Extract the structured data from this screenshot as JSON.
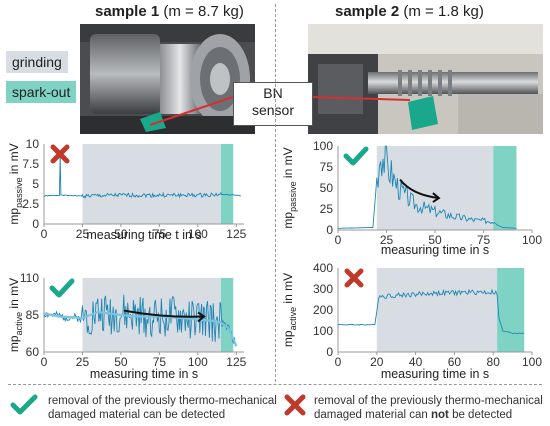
{
  "colors": {
    "grinding_bg": "#d7dde2",
    "sparkout_bg": "#7fd3c4",
    "signal": "#1f86b4",
    "signal_dark": "#0c5f8a",
    "check": "#1aa88c",
    "cross": "#c0392b"
  },
  "header": {
    "sample1_title": "sample 1",
    "sample1_mass": "(m = 8.7 kg)",
    "sample2_title": "sample 2",
    "sample2_mass": "(m = 1.8 kg)"
  },
  "legend": {
    "grinding": "grinding",
    "sparkout": "spark-out"
  },
  "callout": {
    "line1": "BN",
    "line2": "sensor"
  },
  "icons": {
    "check": "check-icon",
    "cross": "cross-icon"
  },
  "chart_data": [
    {
      "id": "s1_passive",
      "type": "line",
      "ylabel": "mp",
      "ylabel_sub": "passive",
      "ylabel_unit": " in mV",
      "xlabel": "measuring time t in s",
      "xlim": [
        0,
        130
      ],
      "ylim": [
        0,
        10
      ],
      "xticks": [
        "0",
        "25",
        "50",
        "75",
        "100",
        "125"
      ],
      "yticks": [
        "0",
        "2.5",
        "5",
        "7.5",
        "10"
      ],
      "grinding_range": [
        25,
        115
      ],
      "sparkout_range": [
        115,
        123
      ],
      "status": "cross",
      "series": [
        {
          "x": [
            0,
            10,
            10.5,
            11,
            25,
            50,
            75,
            100,
            115,
            125,
            128
          ],
          "values": [
            3.5,
            3.6,
            8.7,
            3.6,
            3.5,
            3.6,
            3.6,
            3.6,
            3.7,
            3.6,
            3.5
          ]
        }
      ]
    },
    {
      "id": "s1_active",
      "type": "line",
      "ylabel": "mp",
      "ylabel_sub": "active",
      "ylabel_unit": " in mV",
      "xlabel": "measuring time in s",
      "xlim": [
        0,
        130
      ],
      "ylim": [
        60,
        110
      ],
      "xticks": [
        "0",
        "25",
        "50",
        "75",
        "100",
        "125"
      ],
      "yticks": [
        "60",
        "85",
        "110"
      ],
      "grinding_range": [
        25,
        115
      ],
      "sparkout_range": [
        115,
        123
      ],
      "status": "check",
      "series": [
        {
          "x": [
            0,
            10,
            25,
            35,
            50,
            60,
            75,
            90,
            100,
            110,
            115,
            120,
            125
          ],
          "values": [
            86,
            84,
            83,
            87,
            85,
            84,
            84,
            83,
            82,
            81,
            80,
            76,
            64
          ]
        }
      ]
    },
    {
      "id": "s2_passive",
      "type": "line",
      "ylabel": "mp",
      "ylabel_sub": "passive",
      "ylabel_unit": " in mV",
      "xlabel": "measuring time in s",
      "xlim": [
        0,
        100
      ],
      "ylim": [
        0,
        100
      ],
      "xticks": [
        "0",
        "25",
        "50",
        "75",
        "100"
      ],
      "yticks": [
        "0",
        "25",
        "50",
        "75",
        "100"
      ],
      "grinding_range": [
        20,
        80
      ],
      "sparkout_range": [
        80,
        92
      ],
      "status": "check",
      "series": [
        {
          "x": [
            0,
            18,
            20,
            22,
            25,
            30,
            35,
            40,
            50,
            60,
            70,
            80,
            82,
            85,
            92
          ],
          "values": [
            2,
            3,
            60,
            92,
            80,
            55,
            40,
            30,
            22,
            16,
            12,
            10,
            6,
            3,
            2
          ]
        }
      ]
    },
    {
      "id": "s2_active",
      "type": "line",
      "ylabel": "mp",
      "ylabel_sub": "active",
      "ylabel_unit": " in mV",
      "xlabel": "measuring time in s",
      "xlim": [
        0,
        100
      ],
      "ylim": [
        0,
        400
      ],
      "xticks": [
        "0",
        "20",
        "40",
        "60",
        "80",
        "100"
      ],
      "yticks": [
        "0",
        "100",
        "200",
        "300",
        "400"
      ],
      "grinding_range": [
        20,
        82
      ],
      "sparkout_range": [
        82,
        96
      ],
      "status": "cross",
      "series": [
        {
          "x": [
            0,
            19,
            20,
            21,
            30,
            40,
            50,
            60,
            70,
            80,
            82,
            83,
            85,
            90,
            96
          ],
          "values": [
            130,
            130,
            200,
            265,
            270,
            275,
            280,
            282,
            285,
            285,
            280,
            160,
            100,
            90,
            90
          ]
        }
      ]
    }
  ],
  "footer": {
    "check_text_1": "removal of the previously thermo-mechanical",
    "check_text_2": "damaged material can be detected",
    "cross_text_1": "removal of the previously thermo-mechanical",
    "cross_text_2a": "damaged material can ",
    "cross_text_2b": "not",
    "cross_text_2c": " be detected"
  }
}
